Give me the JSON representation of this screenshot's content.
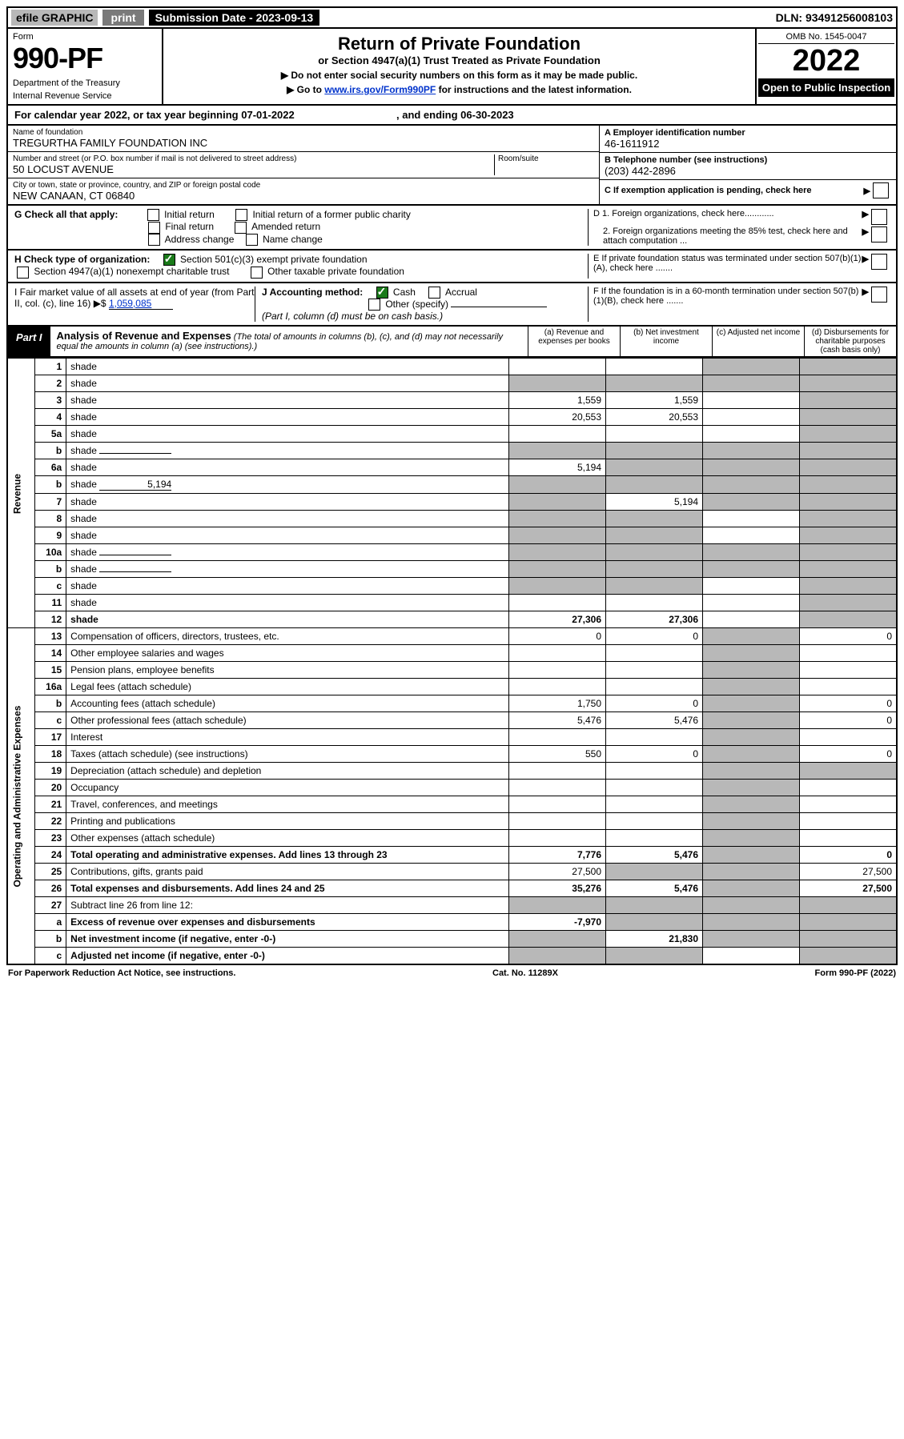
{
  "topbar": {
    "efile": "efile GRAPHIC",
    "print": "print",
    "submission_label": "Submission Date - 2023-09-13",
    "dln": "DLN: 93491256008103"
  },
  "header": {
    "form_label": "Form",
    "form_no": "990-PF",
    "dept": "Department of the Treasury",
    "irs": "Internal Revenue Service",
    "title": "Return of Private Foundation",
    "subtitle": "or Section 4947(a)(1) Trust Treated as Private Foundation",
    "instr1": "▶ Do not enter social security numbers on this form as it may be made public.",
    "instr2_pre": "▶ Go to ",
    "instr2_link": "www.irs.gov/Form990PF",
    "instr2_post": " for instructions and the latest information.",
    "omb": "OMB No. 1545-0047",
    "year": "2022",
    "open": "Open to Public Inspection"
  },
  "cal_row": {
    "pre": "For calendar year 2022, or tax year beginning ",
    "begin": "07-01-2022",
    "mid": " , and ending ",
    "end": "06-30-2023"
  },
  "identity": {
    "name_label": "Name of foundation",
    "name": "TREGURTHA FAMILY FOUNDATION INC",
    "addr_label": "Number and street (or P.O. box number if mail is not delivered to street address)",
    "addr": "50 LOCUST AVENUE",
    "room_label": "Room/suite",
    "city_label": "City or town, state or province, country, and ZIP or foreign postal code",
    "city": "NEW CANAAN, CT  06840",
    "ein_label": "A Employer identification number",
    "ein": "46-1611912",
    "tel_label": "B Telephone number (see instructions)",
    "tel": "(203) 442-2896",
    "c_label": "C If exemption application is pending, check here",
    "d1": "D 1. Foreign organizations, check here............",
    "d2": "2. Foreign organizations meeting the 85% test, check here and attach computation ...",
    "e": "E  If private foundation status was terminated under section 507(b)(1)(A), check here .......",
    "f": "F  If the foundation is in a 60-month termination under section 507(b)(1)(B), check here ......."
  },
  "g": {
    "label": "G Check all that apply:",
    "opts": [
      "Initial return",
      "Initial return of a former public charity",
      "Final return",
      "Amended return",
      "Address change",
      "Name change"
    ]
  },
  "h": {
    "label": "H Check type of organization:",
    "opt1": "Section 501(c)(3) exempt private foundation",
    "opt2": "Section 4947(a)(1) nonexempt charitable trust",
    "opt3": "Other taxable private foundation"
  },
  "i": {
    "label": "I Fair market value of all assets at end of year (from Part II, col. (c), line 16) ▶$ ",
    "value": "1,059,085"
  },
  "j": {
    "label": "J Accounting method:",
    "cash": "Cash",
    "accrual": "Accrual",
    "other": "Other (specify)",
    "note": "(Part I, column (d) must be on cash basis.)"
  },
  "part1": {
    "label": "Part I",
    "title": "Analysis of Revenue and Expenses",
    "note": " (The total of amounts in columns (b), (c), and (d) may not necessarily equal the amounts in column (a) (see instructions).)",
    "col_a": "(a)  Revenue and expenses per books",
    "col_b": "(b)  Net investment income",
    "col_c": "(c)  Adjusted net income",
    "col_d": "(d)  Disbursements for charitable purposes (cash basis only)"
  },
  "sections": {
    "revenue": "Revenue",
    "opex": "Operating and Administrative Expenses"
  },
  "rows": [
    {
      "n": "1",
      "d": "shade",
      "a": "",
      "b": "",
      "c": "shade"
    },
    {
      "n": "2",
      "d": "shade",
      "a": "shade",
      "b": "shade",
      "c": "shade",
      "nobord": true
    },
    {
      "n": "3",
      "d": "shade",
      "a": "1,559",
      "b": "1,559",
      "c": ""
    },
    {
      "n": "4",
      "d": "shade",
      "a": "20,553",
      "b": "20,553",
      "c": ""
    },
    {
      "n": "5a",
      "d": "shade",
      "a": "",
      "b": "",
      "c": ""
    },
    {
      "n": "b",
      "d": "shade",
      "a": "shade",
      "b": "shade",
      "c": "shade",
      "inline": true
    },
    {
      "n": "6a",
      "d": "shade",
      "a": "5,194",
      "b": "shade",
      "c": "shade"
    },
    {
      "n": "b",
      "d": "shade",
      "a": "shade",
      "b": "shade",
      "c": "shade",
      "inline": true,
      "inline_val": "5,194"
    },
    {
      "n": "7",
      "d": "shade",
      "a": "shade",
      "b": "5,194",
      "c": "shade"
    },
    {
      "n": "8",
      "d": "shade",
      "a": "shade",
      "b": "shade",
      "c": ""
    },
    {
      "n": "9",
      "d": "shade",
      "a": "shade",
      "b": "shade",
      "c": ""
    },
    {
      "n": "10a",
      "d": "shade",
      "a": "shade",
      "b": "shade",
      "c": "shade",
      "inline": true
    },
    {
      "n": "b",
      "d": "shade",
      "a": "shade",
      "b": "shade",
      "c": "shade",
      "inline": true
    },
    {
      "n": "c",
      "d": "shade",
      "a": "shade",
      "b": "shade",
      "c": ""
    },
    {
      "n": "11",
      "d": "shade",
      "a": "",
      "b": "",
      "c": ""
    },
    {
      "n": "12",
      "d": "shade",
      "a": "27,306",
      "b": "27,306",
      "c": "",
      "bold": true
    }
  ],
  "exp_rows": [
    {
      "n": "13",
      "d": "0",
      "a": "0",
      "b": "0",
      "c": "shade"
    },
    {
      "n": "14",
      "d": "",
      "a": "",
      "b": "",
      "c": "shade"
    },
    {
      "n": "15",
      "d": "",
      "a": "",
      "b": "",
      "c": "shade"
    },
    {
      "n": "16a",
      "d": "",
      "a": "",
      "b": "",
      "c": "shade"
    },
    {
      "n": "b",
      "d": "0",
      "a": "1,750",
      "b": "0",
      "c": "shade"
    },
    {
      "n": "c",
      "d": "0",
      "a": "5,476",
      "b": "5,476",
      "c": "shade"
    },
    {
      "n": "17",
      "d": "",
      "a": "",
      "b": "",
      "c": "shade"
    },
    {
      "n": "18",
      "d": "0",
      "a": "550",
      "b": "0",
      "c": "shade"
    },
    {
      "n": "19",
      "d": "shade",
      "a": "",
      "b": "",
      "c": "shade"
    },
    {
      "n": "20",
      "d": "",
      "a": "",
      "b": "",
      "c": "shade"
    },
    {
      "n": "21",
      "d": "",
      "a": "",
      "b": "",
      "c": "shade"
    },
    {
      "n": "22",
      "d": "",
      "a": "",
      "b": "",
      "c": "shade"
    },
    {
      "n": "23",
      "d": "",
      "a": "",
      "b": "",
      "c": "shade"
    },
    {
      "n": "24",
      "d": "0",
      "a": "7,776",
      "b": "5,476",
      "c": "shade",
      "bold": true
    },
    {
      "n": "25",
      "d": "27,500",
      "a": "27,500",
      "b": "shade",
      "c": "shade"
    },
    {
      "n": "26",
      "d": "27,500",
      "a": "35,276",
      "b": "5,476",
      "c": "shade",
      "bold": true
    },
    {
      "n": "27",
      "d": "shade",
      "a": "shade",
      "b": "shade",
      "c": "shade"
    },
    {
      "n": "a",
      "d": "shade",
      "a": "-7,970",
      "b": "shade",
      "c": "shade",
      "bold": true
    },
    {
      "n": "b",
      "d": "shade",
      "a": "shade",
      "b": "21,830",
      "c": "shade",
      "bold": true
    },
    {
      "n": "c",
      "d": "shade",
      "a": "shade",
      "b": "shade",
      "c": "",
      "bold": true
    }
  ],
  "footer": {
    "left": "For Paperwork Reduction Act Notice, see instructions.",
    "mid": "Cat. No. 11289X",
    "right": "Form 990-PF (2022)"
  },
  "colors": {
    "shade": "#b8b8b8",
    "black": "#000000",
    "link": "#0033cc",
    "check": "#1a7a1a"
  }
}
